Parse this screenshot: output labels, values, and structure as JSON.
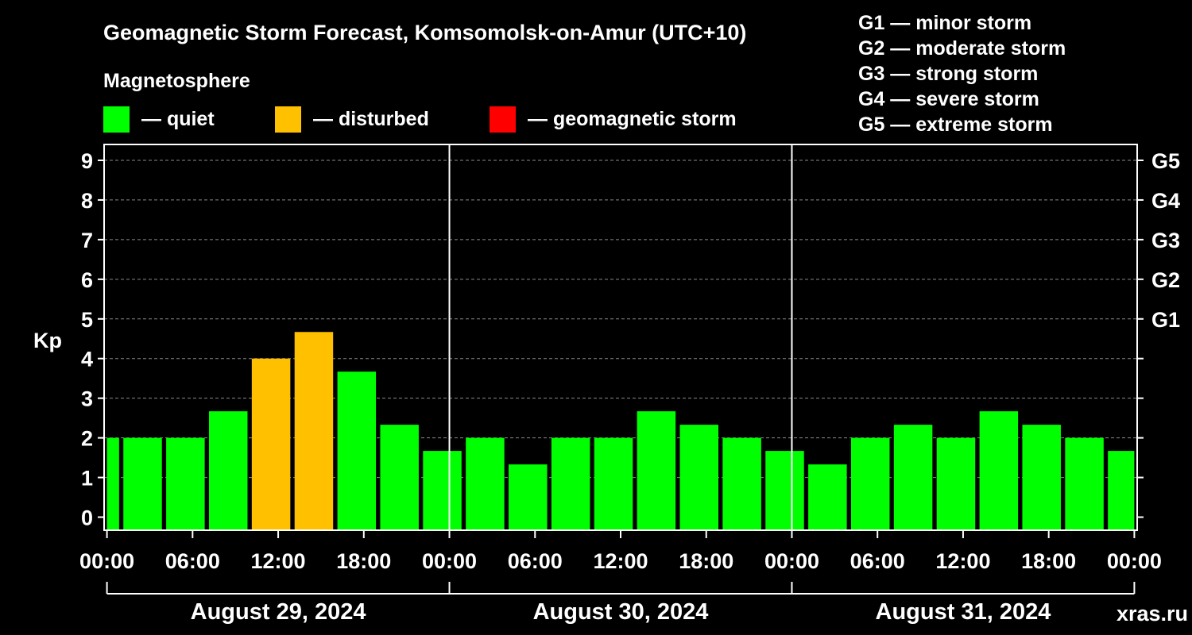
{
  "chart_data": {
    "type": "bar",
    "title": "Geomagnetic Storm Forecast, Komsomolsk-on-Amur (UTC+10)",
    "legend_title": "Magnetosphere",
    "legend": [
      {
        "key": "quiet",
        "label": "— quiet",
        "color": "#00ff00"
      },
      {
        "key": "disturbed",
        "label": "— disturbed",
        "color": "#ffc000"
      },
      {
        "key": "storm",
        "label": "— geomagnetic storm",
        "color": "#ff0000"
      }
    ],
    "storm_scale": [
      "G1 — minor storm",
      "G2 — moderate storm",
      "G3 — strong storm",
      "G4 — severe storm",
      "G5 — extreme storm"
    ],
    "ylabel": "Kp",
    "ylim": [
      -0.33,
      9.4
    ],
    "yticks": [
      "0",
      "1",
      "2",
      "3",
      "4",
      "5",
      "6",
      "7",
      "8",
      "9"
    ],
    "y2ticks": [
      {
        "value": 5,
        "label": "G1"
      },
      {
        "value": 6,
        "label": "G2"
      },
      {
        "value": 7,
        "label": "G3"
      },
      {
        "value": 8,
        "label": "G4"
      },
      {
        "value": 9,
        "label": "G5"
      }
    ],
    "xlim_hours": [
      -0.2,
      72.2
    ],
    "xticks": [
      {
        "hour": 0,
        "label": "00:00"
      },
      {
        "hour": 6,
        "label": "06:00"
      },
      {
        "hour": 12,
        "label": "12:00"
      },
      {
        "hour": 18,
        "label": "18:00"
      },
      {
        "hour": 24,
        "label": "00:00"
      },
      {
        "hour": 30,
        "label": "06:00"
      },
      {
        "hour": 36,
        "label": "12:00"
      },
      {
        "hour": 42,
        "label": "18:00"
      },
      {
        "hour": 48,
        "label": "00:00"
      },
      {
        "hour": 54,
        "label": "06:00"
      },
      {
        "hour": 60,
        "label": "12:00"
      },
      {
        "hour": 66,
        "label": "18:00"
      },
      {
        "hour": 72,
        "label": "00:00"
      }
    ],
    "day_dividers_hours": [
      24,
      48
    ],
    "days": [
      {
        "label": "August 29, 2024",
        "start_hour": 0,
        "end_hour": 24
      },
      {
        "label": "August 30, 2024",
        "start_hour": 24,
        "end_hour": 48
      },
      {
        "label": "August 31, 2024",
        "start_hour": 48,
        "end_hour": 72
      }
    ],
    "bars": [
      {
        "start": 0,
        "end": 0.85,
        "kp": 2.0,
        "level": "quiet"
      },
      {
        "start": 1.15,
        "end": 3.85,
        "kp": 2.0,
        "level": "quiet"
      },
      {
        "start": 4.15,
        "end": 6.85,
        "kp": 2.0,
        "level": "quiet"
      },
      {
        "start": 7.15,
        "end": 9.85,
        "kp": 2.67,
        "level": "quiet"
      },
      {
        "start": 10.15,
        "end": 12.85,
        "kp": 4.0,
        "level": "disturbed"
      },
      {
        "start": 13.15,
        "end": 15.85,
        "kp": 4.67,
        "level": "disturbed"
      },
      {
        "start": 16.15,
        "end": 18.85,
        "kp": 3.67,
        "level": "quiet"
      },
      {
        "start": 19.15,
        "end": 21.85,
        "kp": 2.33,
        "level": "quiet"
      },
      {
        "start": 22.15,
        "end": 24.85,
        "kp": 1.67,
        "level": "quiet"
      },
      {
        "start": 25.15,
        "end": 27.85,
        "kp": 2.0,
        "level": "quiet"
      },
      {
        "start": 28.15,
        "end": 30.85,
        "kp": 1.33,
        "level": "quiet"
      },
      {
        "start": 31.15,
        "end": 33.85,
        "kp": 2.0,
        "level": "quiet"
      },
      {
        "start": 34.15,
        "end": 36.85,
        "kp": 2.0,
        "level": "quiet"
      },
      {
        "start": 37.15,
        "end": 39.85,
        "kp": 2.67,
        "level": "quiet"
      },
      {
        "start": 40.15,
        "end": 42.85,
        "kp": 2.33,
        "level": "quiet"
      },
      {
        "start": 43.15,
        "end": 45.85,
        "kp": 2.0,
        "level": "quiet"
      },
      {
        "start": 46.15,
        "end": 48.85,
        "kp": 1.67,
        "level": "quiet"
      },
      {
        "start": 49.15,
        "end": 51.85,
        "kp": 1.33,
        "level": "quiet"
      },
      {
        "start": 52.15,
        "end": 54.85,
        "kp": 2.0,
        "level": "quiet"
      },
      {
        "start": 55.15,
        "end": 57.85,
        "kp": 2.33,
        "level": "quiet"
      },
      {
        "start": 58.15,
        "end": 60.85,
        "kp": 2.0,
        "level": "quiet"
      },
      {
        "start": 61.15,
        "end": 63.85,
        "kp": 2.67,
        "level": "quiet"
      },
      {
        "start": 64.15,
        "end": 66.85,
        "kp": 2.33,
        "level": "quiet"
      },
      {
        "start": 67.15,
        "end": 69.85,
        "kp": 2.0,
        "level": "quiet"
      },
      {
        "start": 70.15,
        "end": 72.0,
        "kp": 1.67,
        "level": "quiet"
      }
    ],
    "grid": true,
    "watermark": "xras.ru"
  },
  "colors": {
    "background": "#000000",
    "foreground": "#ffffff",
    "grid": "#8a8a8a",
    "watermark": "#9a9a9a"
  }
}
